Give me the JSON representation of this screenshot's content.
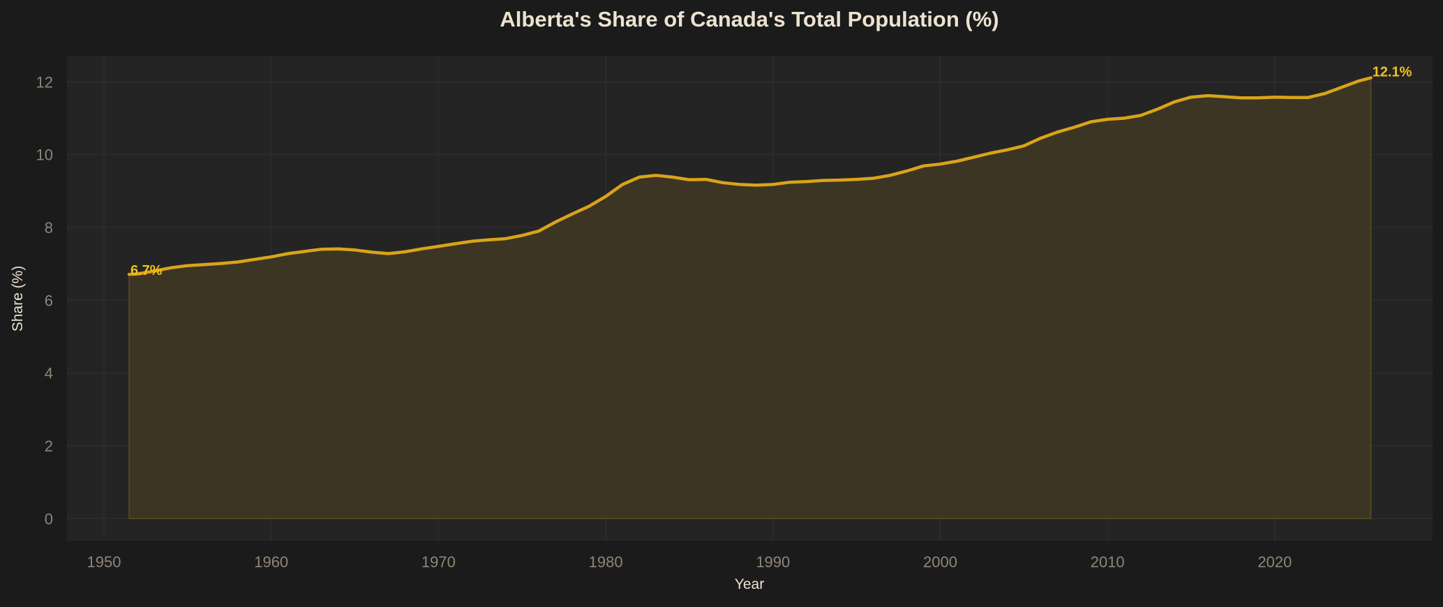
{
  "chart_data": {
    "type": "area",
    "title": "Alberta's Share of Canada's Total Population (%)",
    "xlabel": "Year",
    "ylabel": "Share (%)",
    "xlim": [
      1947.8,
      2029.5
    ],
    "ylim": [
      -0.6,
      12.8
    ],
    "x_ticks": [
      1950,
      1960,
      1970,
      1980,
      1990,
      2000,
      2010,
      2020
    ],
    "y_ticks": [
      0,
      2,
      4,
      6,
      8,
      10,
      12
    ],
    "grid": true,
    "legend": null,
    "colors": {
      "background": "#1b1b1b",
      "plot_background": "#242424",
      "grid": "#2f2f2f",
      "line": "#d9a418",
      "fill": "#3d3524",
      "fill_edge": "#5a4a1f",
      "annotation": "#f2c01a",
      "title": "#ece3d0",
      "tick": "#8f8677"
    },
    "series": [
      {
        "name": "Alberta share of Canada population (%)",
        "x": [
          1951.5,
          1952,
          1953,
          1954,
          1955,
          1956,
          1957,
          1958,
          1959,
          1960,
          1961,
          1962,
          1963,
          1964,
          1965,
          1966,
          1967,
          1968,
          1969,
          1970,
          1971,
          1972,
          1973,
          1974,
          1975,
          1976,
          1977,
          1978,
          1979,
          1980,
          1981,
          1982,
          1983,
          1984,
          1985,
          1986,
          1987,
          1988,
          1989,
          1990,
          1991,
          1992,
          1993,
          1994,
          1995,
          1996,
          1997,
          1998,
          1999,
          2000,
          2001,
          2002,
          2003,
          2004,
          2005,
          2006,
          2007,
          2008,
          2009,
          2010,
          2011,
          2012,
          2013,
          2014,
          2015,
          2016,
          2017,
          2018,
          2019,
          2020,
          2021,
          2022,
          2023,
          2024,
          2025,
          2025.75
        ],
        "values": [
          6.71,
          6.72,
          6.8,
          6.89,
          6.95,
          6.98,
          7.01,
          7.05,
          7.12,
          7.19,
          7.28,
          7.34,
          7.4,
          7.41,
          7.38,
          7.32,
          7.28,
          7.33,
          7.41,
          7.48,
          7.55,
          7.62,
          7.66,
          7.69,
          7.78,
          7.9,
          8.15,
          8.37,
          8.58,
          8.85,
          9.18,
          9.38,
          9.43,
          9.38,
          9.31,
          9.32,
          9.23,
          9.18,
          9.16,
          9.18,
          9.24,
          9.26,
          9.29,
          9.3,
          9.32,
          9.35,
          9.43,
          9.55,
          9.69,
          9.74,
          9.82,
          9.93,
          10.04,
          10.13,
          10.24,
          10.45,
          10.62,
          10.75,
          10.9,
          10.97,
          11.0,
          11.08,
          11.25,
          11.45,
          11.58,
          11.62,
          11.59,
          11.56,
          11.56,
          11.58,
          11.57,
          11.57,
          11.68,
          11.85,
          12.02,
          12.11
        ]
      }
    ],
    "annotations": [
      {
        "text": "6.7%",
        "x": 1951.5,
        "y": 6.71,
        "position": "start"
      },
      {
        "text": "12.1%",
        "x": 2025.75,
        "y": 12.11,
        "position": "end"
      }
    ]
  }
}
